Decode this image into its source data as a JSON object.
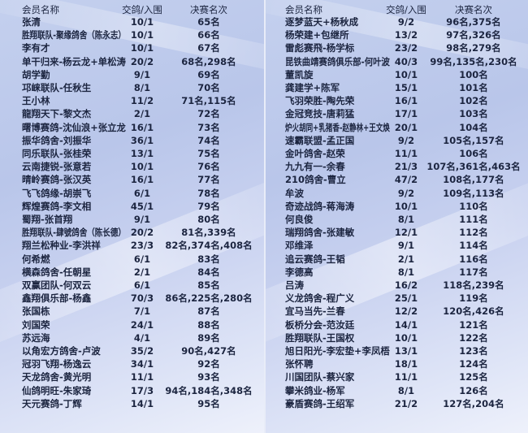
{
  "headers": {
    "name": "会员名称",
    "birds": "交鸽/入围",
    "rank": "决赛名次"
  },
  "left_rows": [
    [
      "张清",
      "10/1",
      "65名"
    ],
    [
      "胜翔联队-聚缘鸽舍（陈永志）",
      "10/1",
      "66名"
    ],
    [
      "李有才",
      "10/1",
      "67名"
    ],
    [
      "单干归来-杨云龙+单松涛",
      "20/2",
      "68名,298名"
    ],
    [
      "胡学勤",
      "9/1",
      "69名"
    ],
    [
      "邛崃联队-任秋生",
      "8/1",
      "70名"
    ],
    [
      "王小林",
      "11/2",
      "71名,115名"
    ],
    [
      "龍翔天下-黎文杰",
      "2/1",
      "72名"
    ],
    [
      "曙博赛鸽-沈仙浪+张立龙",
      "16/1",
      "73名"
    ],
    [
      "振华鸽舍-刘振华",
      "36/1",
      "74名"
    ],
    [
      "同乐联队-张桂荣",
      "13/1",
      "75名"
    ],
    [
      "云南捷锐-张意若",
      "10/1",
      "76名"
    ],
    [
      "晴岭赛鸽-张汉英",
      "16/1",
      "77名"
    ],
    [
      "飞飞鸽缘-胡崇飞",
      "6/1",
      "78名"
    ],
    [
      "辉煌赛鸽-李文相",
      "45/1",
      "79名"
    ],
    [
      "蜀翔-张首翔",
      "9/1",
      "80名"
    ],
    [
      "胜翔联队-肆號鸽舍（陈长德）",
      "20/2",
      "81名,339名"
    ],
    [
      "翔兰松种业-李洪祥",
      "23/3",
      "82名,374名,408名"
    ],
    [
      "何希燃",
      "6/1",
      "83名"
    ],
    [
      "横森鸽舍-任朝星",
      "2/1",
      "84名"
    ],
    [
      "双赢团队-何双云",
      "6/1",
      "85名"
    ],
    [
      "鑫翔俱乐部-杨鑫",
      "70/3",
      "86名,225名,280名"
    ],
    [
      "张国栋",
      "7/1",
      "87名"
    ],
    [
      "刘国荣",
      "24/1",
      "88名"
    ],
    [
      "苏远海",
      "4/1",
      "89名"
    ],
    [
      "以角宏方鸽舍-卢波",
      "35/2",
      "90名,427名"
    ],
    [
      "冠羽飞翔-杨逸云",
      "34/1",
      "92名"
    ],
    [
      "天龙鸽舍-黄光明",
      "11/1",
      "93名"
    ],
    [
      "仙鸽明旺-朱家琦",
      "17/3",
      "94名,184名,348名"
    ],
    [
      "天元赛鸽-丁辉",
      "14/1",
      "95名"
    ]
  ],
  "right_rows": [
    [
      "逐梦蓝天+杨秋成",
      "9/2",
      "96名,375名"
    ],
    [
      "杨荣建+包继所",
      "13/2",
      "97名,326名"
    ],
    [
      "雷彪赛飛-杨学标",
      "23/2",
      "98名,279名"
    ],
    [
      "昆铁曲靖赛鸽俱乐部-何叶波",
      "40/3",
      "99名,135名,230名"
    ],
    [
      "董凯旋",
      "10/1",
      "100名"
    ],
    [
      "龚建学+陈军",
      "15/1",
      "101名"
    ],
    [
      "飞羽荣胜-陶先荣",
      "16/1",
      "102名"
    ],
    [
      "金冠竞技-唐莉猛",
      "17/1",
      "103名"
    ],
    [
      "炉火胡同+乳猪香-赵静林+王文焕",
      "20/1",
      "104名"
    ],
    [
      "速霸联盟-孟正国",
      "9/2",
      "105名,157名"
    ],
    [
      "金叶鸽舍-赵荣",
      "11/1",
      "106名"
    ],
    [
      "九九有一-余春",
      "21/3",
      "107名,361名,463名"
    ],
    [
      "210鸽舍-曹立",
      "47/2",
      "108名,177名"
    ],
    [
      "牟波",
      "9/2",
      "109名,113名"
    ],
    [
      "奇迹战鸽-蒋海涛",
      "10/1",
      "110名"
    ],
    [
      "何良俊",
      "8/1",
      "111名"
    ],
    [
      "瑞翔鸽舍-张建敏",
      "12/1",
      "112名"
    ],
    [
      "邓维泽",
      "9/1",
      "114名"
    ],
    [
      "追云赛鸽-王韬",
      "2/1",
      "116名"
    ],
    [
      "李德高",
      "8/1",
      "117名"
    ],
    [
      "吕涛",
      "16/2",
      "118名,239名"
    ],
    [
      "义龙鸽舍-程广义",
      "25/1",
      "119名"
    ],
    [
      "宜马当先-兰春",
      "12/2",
      "120名,426名"
    ],
    [
      "板桥分会-范汝廷",
      "14/1",
      "121名"
    ],
    [
      "胜翔联队-王国权",
      "10/1",
      "122名"
    ],
    [
      "旭日阳光-李宏垫+李凤梧",
      "13/1",
      "123名"
    ],
    [
      "张怀聘",
      "18/1",
      "124名"
    ],
    [
      "川国团队-蔡兴家",
      "11/1",
      "125名"
    ],
    [
      "攀米鸽业-杨军",
      "8/1",
      "126名"
    ],
    [
      "豪盾赛鸽-王绍军",
      "21/2",
      "127名,204名"
    ]
  ]
}
